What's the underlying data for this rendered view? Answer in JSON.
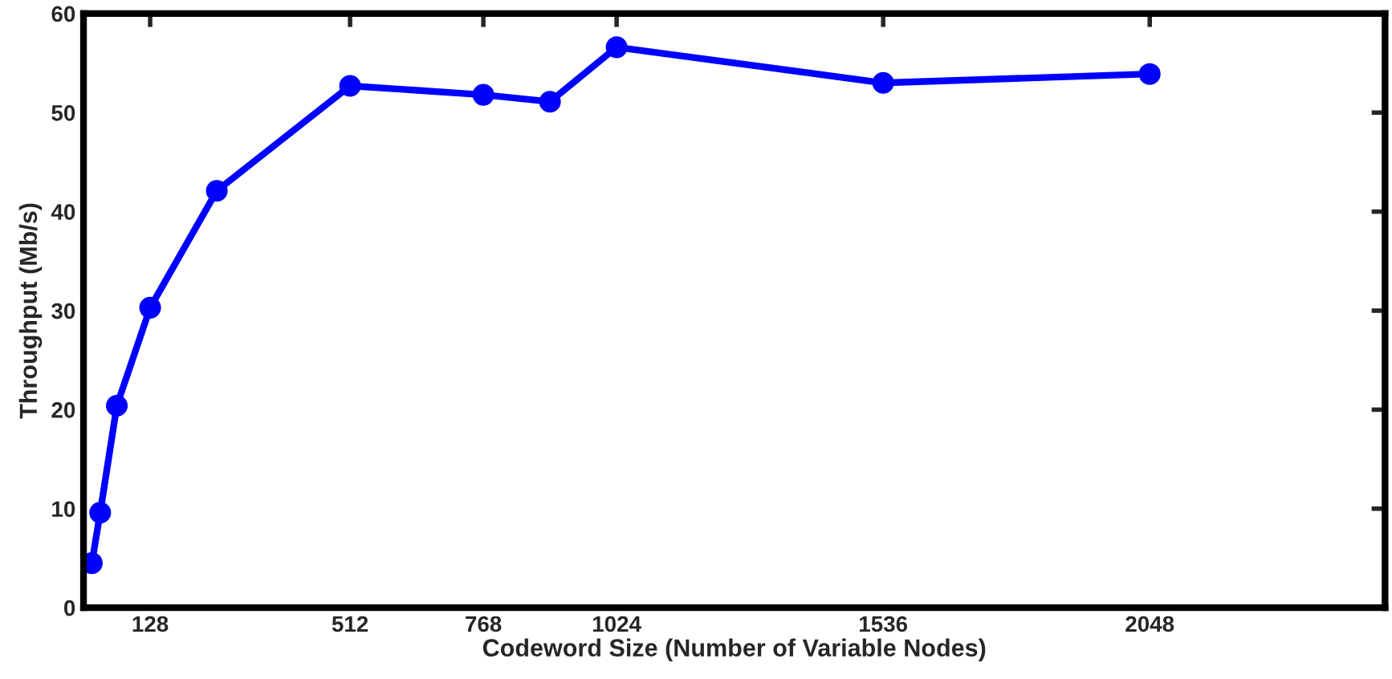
{
  "chart_data": {
    "type": "line",
    "xlabel": "Codeword Size (Number of Variable Nodes)",
    "ylabel": "Throughput (Mb/s)",
    "x": [
      16,
      32,
      64,
      128,
      256,
      512,
      768,
      896,
      1024,
      1536,
      2048
    ],
    "series": [
      {
        "color": "#0000ff",
        "values": [
          4.5,
          9.6,
          20.4,
          30.3,
          42.1,
          52.7,
          51.8,
          51.1,
          56.6,
          53.0,
          53.9
        ]
      }
    ],
    "xlim": [
      0,
      2500
    ],
    "xticks": [
      128,
      512,
      768,
      1024,
      1536,
      2048
    ],
    "ylim": [
      0,
      60
    ],
    "yticks": [
      0,
      10,
      20,
      30,
      40,
      50,
      60
    ],
    "grid": false,
    "legend": false,
    "marker": "circle",
    "line_style": "solid"
  }
}
